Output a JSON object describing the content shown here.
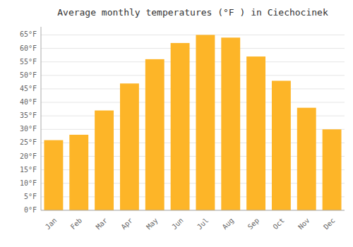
{
  "chart_data": {
    "type": "bar",
    "title": "Average monthly temperatures (°F ) in Ciechocinek",
    "categories": [
      "Jan",
      "Feb",
      "Mar",
      "Apr",
      "May",
      "Jun",
      "Jul",
      "Aug",
      "Sep",
      "Oct",
      "Nov",
      "Dec"
    ],
    "values": [
      26,
      28,
      37,
      47,
      56,
      62,
      65,
      64,
      57,
      48,
      38,
      30
    ],
    "color": "#FDB528",
    "ylim": [
      0,
      68
    ],
    "yticks": [
      {
        "value": 0,
        "label": "0°F"
      },
      {
        "value": 5,
        "label": "5°F"
      },
      {
        "value": 10,
        "label": "10°F"
      },
      {
        "value": 15,
        "label": "15°F"
      },
      {
        "value": 20,
        "label": "20°F"
      },
      {
        "value": 25,
        "label": "25°F"
      },
      {
        "value": 30,
        "label": "30°F"
      },
      {
        "value": 35,
        "label": "35°F"
      },
      {
        "value": 40,
        "label": "40°F"
      },
      {
        "value": 45,
        "label": "45°F"
      },
      {
        "value": 50,
        "label": "50°F"
      },
      {
        "value": 55,
        "label": "55°F"
      },
      {
        "value": 60,
        "label": "60°F"
      },
      {
        "value": 65,
        "label": "65°F"
      }
    ],
    "grid": true
  }
}
